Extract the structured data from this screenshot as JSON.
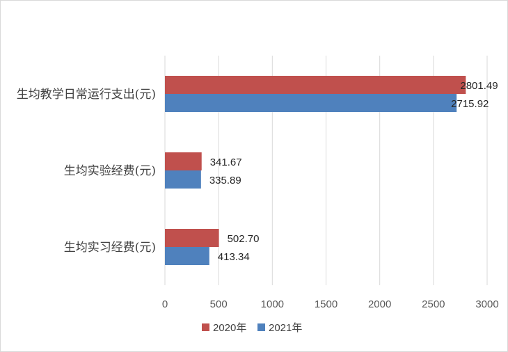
{
  "chart_data": {
    "type": "bar",
    "orientation": "horizontal",
    "categories": [
      "生均教学日常运行支出(元)",
      "生均实验经费(元)",
      "生均实习经费(元)"
    ],
    "series": [
      {
        "name": "2020年",
        "color": "#c0504d",
        "values": [
          2801.49,
          341.67,
          502.7
        ],
        "labels": [
          "2801.49",
          "341.67",
          "502.70"
        ]
      },
      {
        "name": "2021年",
        "color": "#4f81bd",
        "values": [
          2715.92,
          335.89,
          413.34
        ],
        "labels": [
          "2715.92",
          "335.89",
          "413.34"
        ]
      }
    ],
    "xlim": [
      0,
      3000
    ],
    "xticks": [
      0,
      500,
      1000,
      1500,
      2000,
      2500,
      3000
    ],
    "xtick_labels": [
      "0",
      "500",
      "1000",
      "1500",
      "2000",
      "2500",
      "3000"
    ],
    "grid": "vertical",
    "legend_position": "bottom",
    "title": "",
    "xlabel": "",
    "ylabel": ""
  }
}
